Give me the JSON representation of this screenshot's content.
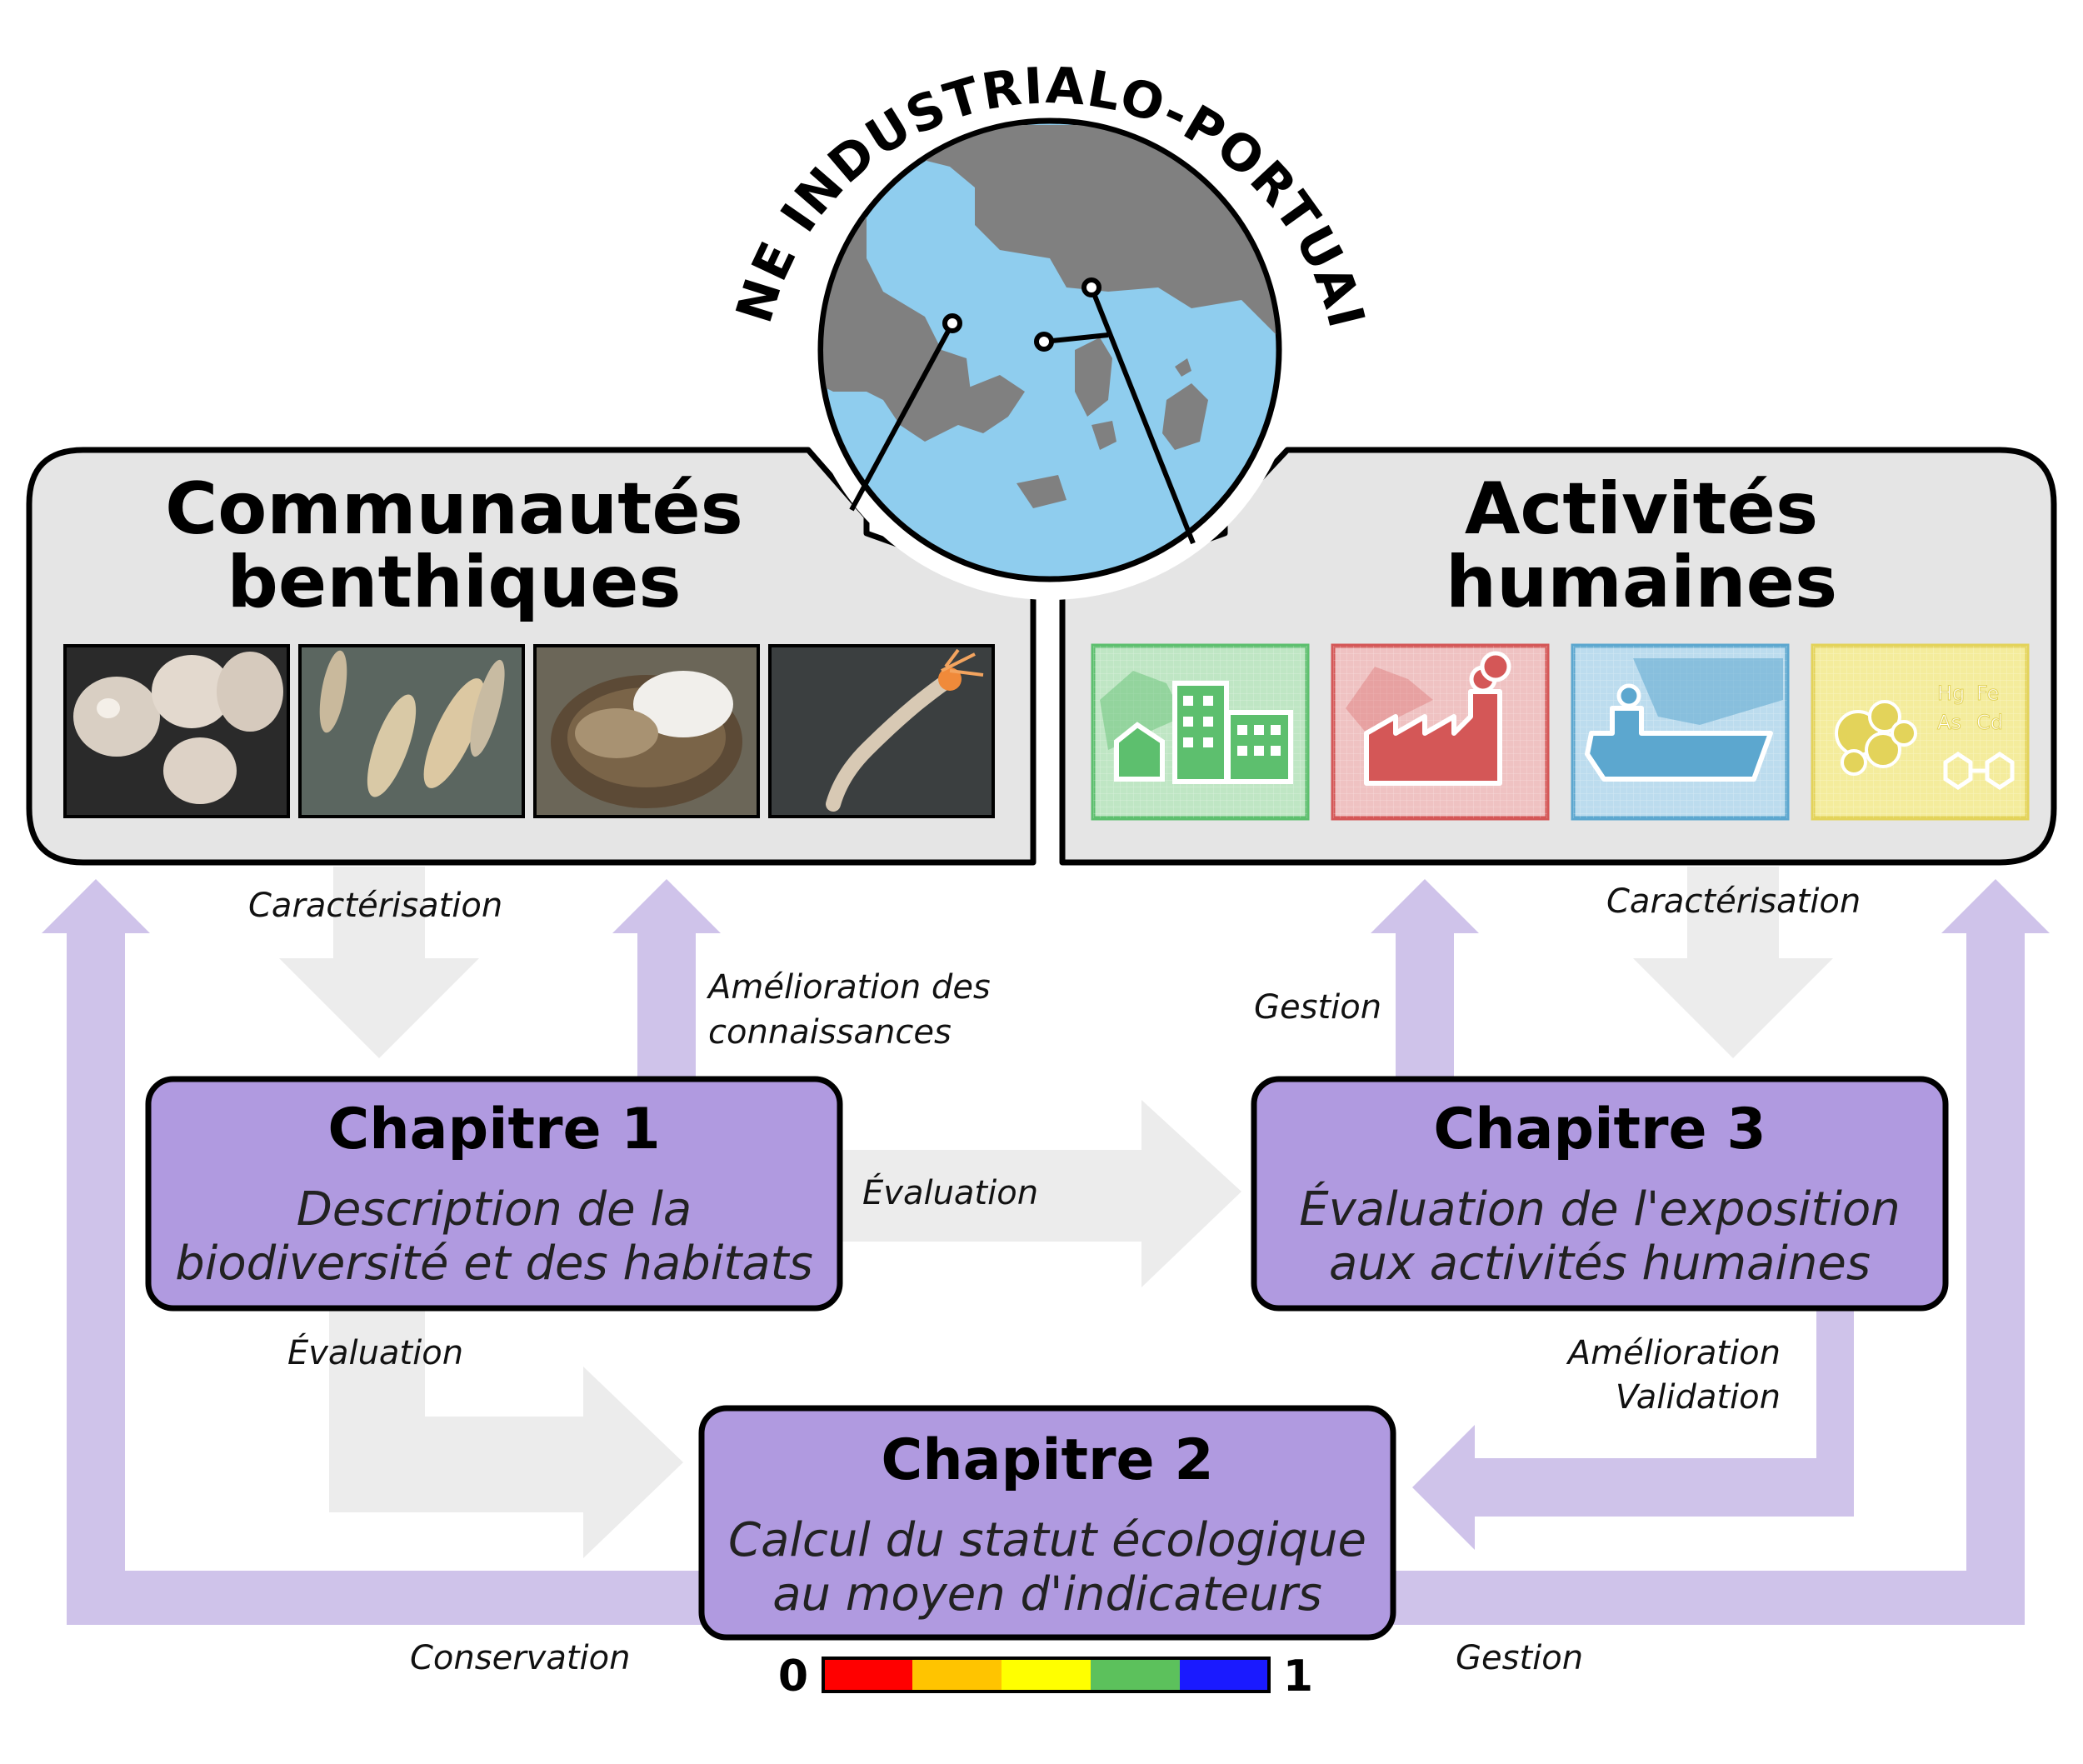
{
  "title_arc": "ZONE INDUSTRIALO-PORTUAIRE",
  "panels": {
    "left": {
      "title_line1": "Communautés",
      "title_line2": "benthiques",
      "photos": [
        "bivalves-photo",
        "worms-photo",
        "clam-photo",
        "polychaete-photo"
      ]
    },
    "right": {
      "title_line1": "Activités",
      "title_line2": "humaines"
    }
  },
  "tiles": [
    {
      "icon": "urban-buildings-icon",
      "color": "#5dbf6e",
      "bg": "#bfe6c4"
    },
    {
      "icon": "factory-icon",
      "color": "#d45757",
      "bg": "#efc2c2"
    },
    {
      "icon": "cargo-ship-icon",
      "color": "#5ca7cf",
      "bg": "#bcdcee"
    },
    {
      "icon": "chemical-contaminants-icon",
      "color": "#e3d35a",
      "bg": "#f4ec9c",
      "chem_labels": [
        "Hg",
        "Fe",
        "As",
        "Cd"
      ]
    }
  ],
  "chapters": {
    "c1": {
      "title": "Chapitre 1",
      "line1": "Description de la",
      "line2": "biodiversité et des habitats"
    },
    "c2": {
      "title": "Chapitre 2",
      "line1": "Calcul du statut écologique",
      "line2": "au moyen d'indicateurs"
    },
    "c3": {
      "title": "Chapitre 3",
      "line1": "Évaluation de l'exposition",
      "line2": "aux activités humaines"
    }
  },
  "arrow_labels": {
    "carac_left": "Caractérisation",
    "carac_right": "Caractérisation",
    "amelioration_line1": "Amélioration des",
    "amelioration_line2": "connaissances",
    "gestion_top": "Gestion",
    "evaluation_mid": "Évaluation",
    "evaluation_low": "Évaluation",
    "amel_valid_line1": "Amélioration",
    "amel_valid_line2": "Validation",
    "conservation": "Conservation",
    "gestion_bottom": "Gestion"
  },
  "colors": {
    "purple_arrow": "#cfc3ea",
    "gray_arrow": "#ececec",
    "chapter_fill": "#b09ae0",
    "panel_fill": "#e5e5e5",
    "water": "#8fcdee",
    "land": "#808080"
  },
  "color_scale": {
    "min_label": "0",
    "max_label": "1",
    "colors": [
      "#ff0000",
      "#ffc400",
      "#ffff00",
      "#5cc15c",
      "#1a1aff"
    ]
  }
}
